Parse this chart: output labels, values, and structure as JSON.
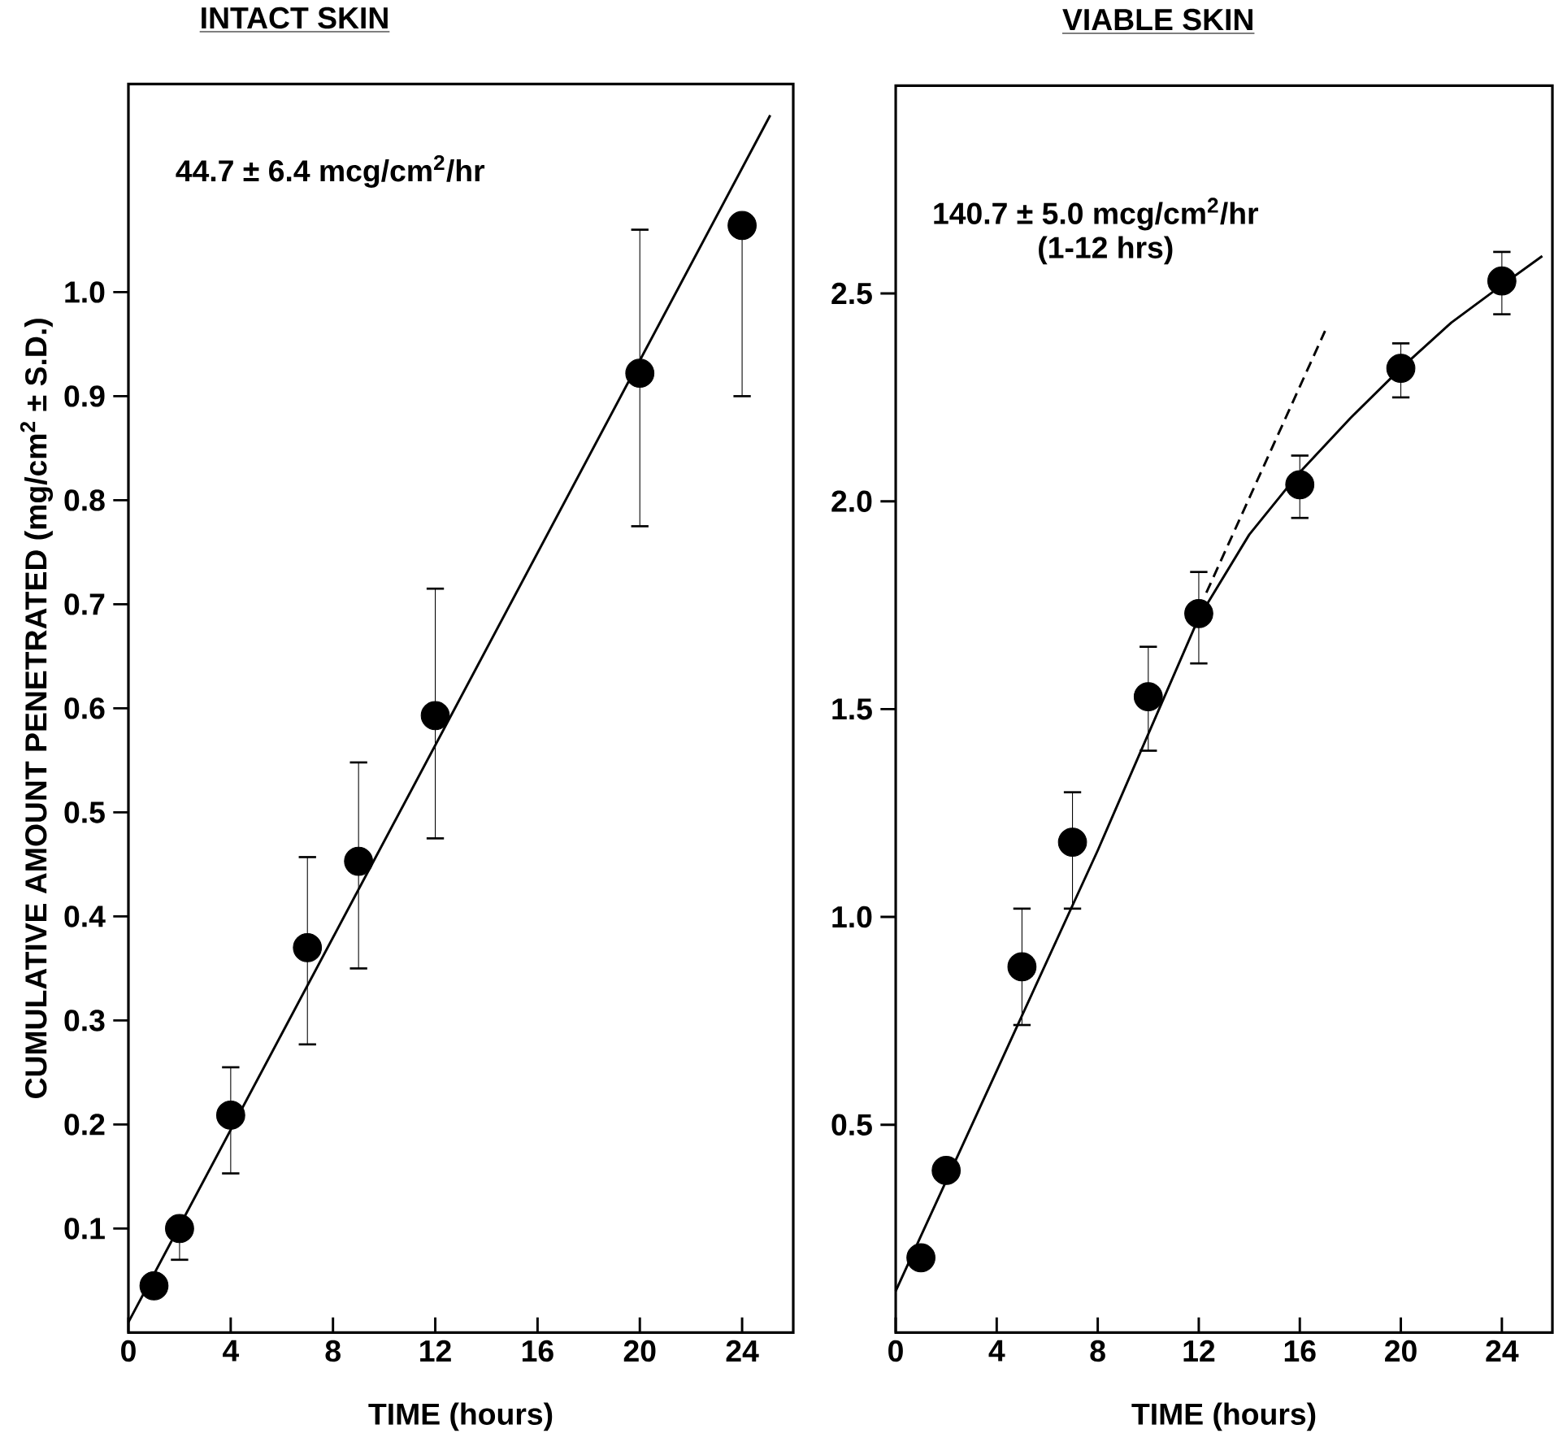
{
  "chart_data": [
    {
      "type": "scatter",
      "title": "INTACT SKIN",
      "xlabel": "TIME (hours)",
      "ylabel": "CUMULATIVE AMOUNT PENETRATED (mg/cm$^{2}$ ± S.D.)",
      "xlim": [
        0,
        26
      ],
      "ylim": [
        0,
        1.2
      ],
      "xticks": [
        0,
        4,
        8,
        12,
        16,
        20,
        24
      ],
      "yticks": [
        {
          "value": 0.1,
          "label": "0.1"
        },
        {
          "value": 0.2,
          "label": "0.2"
        },
        {
          "value": 0.3,
          "label": "0.3"
        },
        {
          "value": 0.4,
          "label": "0.4"
        },
        {
          "value": 0.5,
          "label": "0.5"
        },
        {
          "value": 0.6,
          "label": "0.6"
        },
        {
          "value": 0.7,
          "label": "0.7"
        },
        {
          "value": 0.8,
          "label": "0.8"
        },
        {
          "value": 0.9,
          "label": "0.9"
        },
        {
          "value": 1.0,
          "label": "1.0"
        }
      ],
      "annotations": [
        "44.7 ± 6.4 mcg/cm$^{2}$/hr"
      ],
      "series": [
        {
          "type": "line",
          "color": "#000000",
          "line_style": "solid",
          "x": [
            0,
            25.1
          ],
          "values": [
            0.01,
            1.17
          ]
        },
        {
          "color": "#000000",
          "marker": "circle",
          "x": [
            1,
            2,
            4,
            7,
            9,
            12,
            20,
            24
          ],
          "values": [
            0.045,
            0.1,
            0.209,
            0.37,
            0.453,
            0.593,
            0.922,
            1.064
          ],
          "errors": [
            null,
            [
              0.07,
              0.1
            ],
            [
              0.153,
              0.255
            ],
            [
              0.277,
              0.457
            ],
            [
              0.35,
              0.548
            ],
            [
              0.475,
              0.715
            ],
            [
              0.775,
              1.06
            ],
            [
              0.9,
              1.064
            ]
          ]
        }
      ]
    },
    {
      "type": "scatter",
      "title": "VIABLE SKIN",
      "xlabel": "TIME (hours)",
      "xlim": [
        0,
        26
      ],
      "ylim": [
        0,
        3.0
      ],
      "xticks": [
        0,
        4,
        8,
        12,
        16,
        20,
        24
      ],
      "yticks": [
        {
          "value": 0.5,
          "label": "0.5"
        },
        {
          "value": 1.0,
          "label": "1.0"
        },
        {
          "value": 1.5,
          "label": "1.5"
        },
        {
          "value": 2.0,
          "label": "2.0"
        },
        {
          "value": 2.5,
          "label": "2.5"
        }
      ],
      "annotations": [
        "140.7 ± 5.0 mcg/cm$^{2}$/hr",
        "(1-12 hrs)"
      ],
      "series": [
        {
          "type": "line",
          "color": "#000000",
          "line_style": "solid",
          "x": [
            0,
            4,
            8,
            12,
            14,
            16,
            18,
            20,
            22,
            24,
            25.6
          ],
          "values": [
            0.1,
            0.63,
            1.16,
            1.72,
            1.92,
            2.07,
            2.2,
            2.32,
            2.43,
            2.52,
            2.59
          ]
        },
        {
          "type": "line",
          "color": "#000000",
          "line_style": "dashed",
          "x": [
            12.3,
            17
          ],
          "values": [
            1.78,
            2.41
          ]
        },
        {
          "color": "#000000",
          "marker": "circle",
          "x": [
            1,
            2,
            5,
            7,
            10,
            12,
            16,
            20,
            24
          ],
          "values": [
            0.18,
            0.39,
            0.88,
            1.18,
            1.53,
            1.73,
            2.04,
            2.32,
            2.53
          ],
          "errors": [
            null,
            null,
            [
              0.74,
              1.02
            ],
            [
              1.02,
              1.3
            ],
            [
              1.4,
              1.65
            ],
            [
              1.61,
              1.83
            ],
            [
              1.96,
              2.11
            ],
            [
              2.25,
              2.38
            ],
            [
              2.45,
              2.6
            ]
          ]
        }
      ]
    }
  ]
}
